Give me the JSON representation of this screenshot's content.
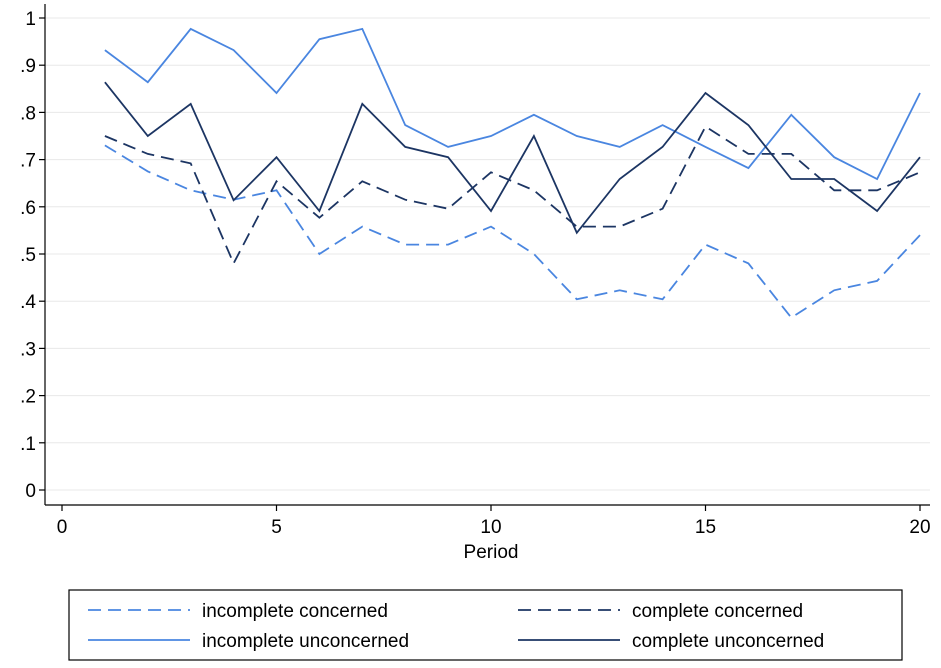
{
  "chart_data": {
    "type": "line",
    "xlabel": "Period",
    "ylabel": "",
    "xlim": [
      0,
      20
    ],
    "ylim": [
      0,
      1
    ],
    "xticks": [
      0,
      5,
      10,
      15,
      20
    ],
    "xtick_labels": [
      "0",
      "5",
      "10",
      "15",
      "20"
    ],
    "yticks": [
      0,
      0.1,
      0.2,
      0.3,
      0.4,
      0.5,
      0.6,
      0.7,
      0.8,
      0.9,
      1
    ],
    "ytick_labels": [
      "0",
      ".1",
      ".2",
      ".3",
      ".4",
      ".5",
      ".6",
      ".7",
      ".8",
      ".9",
      "1"
    ],
    "grid": true,
    "legend_position": "bottom",
    "x": [
      1,
      2,
      3,
      4,
      5,
      6,
      7,
      8,
      9,
      10,
      11,
      12,
      13,
      14,
      15,
      16,
      17,
      18,
      19,
      20
    ],
    "series": [
      {
        "name": "incomplete concerned",
        "color": "#4a86e0",
        "dash": "dashed",
        "values": [
          0.73,
          0.675,
          0.635,
          0.615,
          0.635,
          0.5,
          0.558,
          0.52,
          0.52,
          0.558,
          0.5,
          0.404,
          0.423,
          0.404,
          0.52,
          0.48,
          0.365,
          0.423,
          0.443,
          0.54
        ]
      },
      {
        "name": "complete concerned",
        "color": "#1c3563",
        "dash": "dashed",
        "values": [
          0.75,
          0.712,
          0.692,
          0.48,
          0.654,
          0.577,
          0.654,
          0.615,
          0.596,
          0.673,
          0.635,
          0.558,
          0.558,
          0.596,
          0.77,
          0.712,
          0.712,
          0.635,
          0.635,
          0.673
        ]
      },
      {
        "name": "incomplete unconcerned",
        "color": "#4a86e0",
        "dash": "solid",
        "values": [
          0.932,
          0.864,
          0.977,
          0.932,
          0.841,
          0.955,
          0.977,
          0.773,
          0.727,
          0.75,
          0.795,
          0.75,
          0.727,
          0.773,
          0.727,
          0.682,
          0.795,
          0.705,
          0.659,
          0.841
        ]
      },
      {
        "name": "complete unconcerned",
        "color": "#1c3563",
        "dash": "solid",
        "values": [
          0.864,
          0.75,
          0.818,
          0.614,
          0.705,
          0.591,
          0.818,
          0.727,
          0.705,
          0.591,
          0.75,
          0.545,
          0.659,
          0.727,
          0.841,
          0.773,
          0.659,
          0.659,
          0.591,
          0.705
        ]
      }
    ]
  }
}
